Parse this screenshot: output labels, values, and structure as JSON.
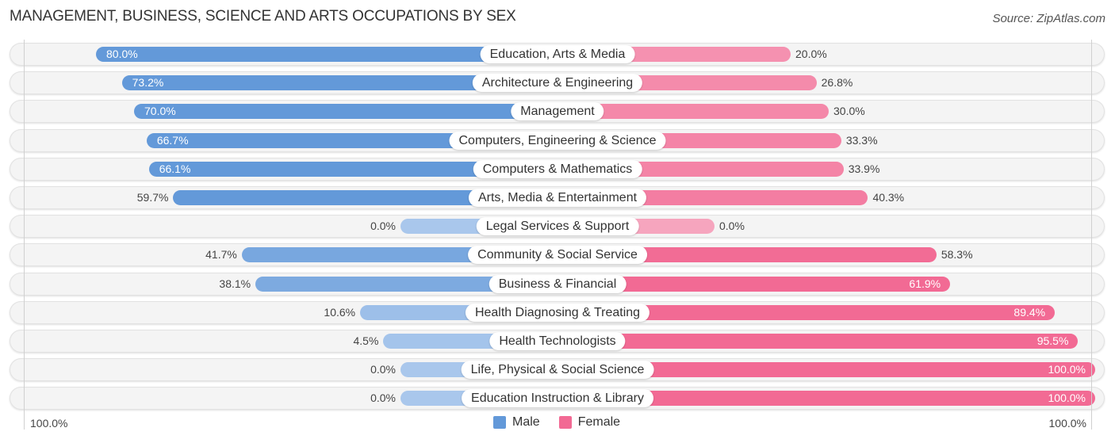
{
  "header": {
    "title": "MANAGEMENT, BUSINESS, SCIENCE AND ARTS OCCUPATIONS BY SEX",
    "source": "Source: ZipAtlas.com"
  },
  "colors": {
    "male_strong": "#6399D9",
    "male_light": "#A9C7EC",
    "female_strong": "#F26A94",
    "female_light": "#F6A5BE"
  },
  "chart_data": {
    "type": "bar",
    "orientation": "horizontal-diverging",
    "title": "MANAGEMENT, BUSINESS, SCIENCE AND ARTS OCCUPATIONS BY SEX",
    "categories": [
      "Education, Arts & Media",
      "Architecture & Engineering",
      "Management",
      "Computers, Engineering & Science",
      "Computers & Mathematics",
      "Arts, Media & Entertainment",
      "Legal Services & Support",
      "Community & Social Service",
      "Business & Financial",
      "Health Diagnosing & Treating",
      "Health Technologists",
      "Life, Physical & Social Science",
      "Education Instruction & Library"
    ],
    "series": [
      {
        "name": "Male",
        "values": [
          80.0,
          73.2,
          70.0,
          66.7,
          66.1,
          59.7,
          0.0,
          41.7,
          38.1,
          10.6,
          4.5,
          0.0,
          0.0
        ]
      },
      {
        "name": "Female",
        "values": [
          20.0,
          26.8,
          30.0,
          33.3,
          33.9,
          40.3,
          0.0,
          58.3,
          61.9,
          89.4,
          95.5,
          100.0,
          100.0
        ]
      }
    ],
    "value_format": "{v}%",
    "axis": {
      "left_label": "100.0%",
      "right_label": "100.0%",
      "range": [
        0,
        100
      ]
    },
    "legend": {
      "position": "bottom-center",
      "entries": [
        "Male",
        "Female"
      ]
    }
  }
}
